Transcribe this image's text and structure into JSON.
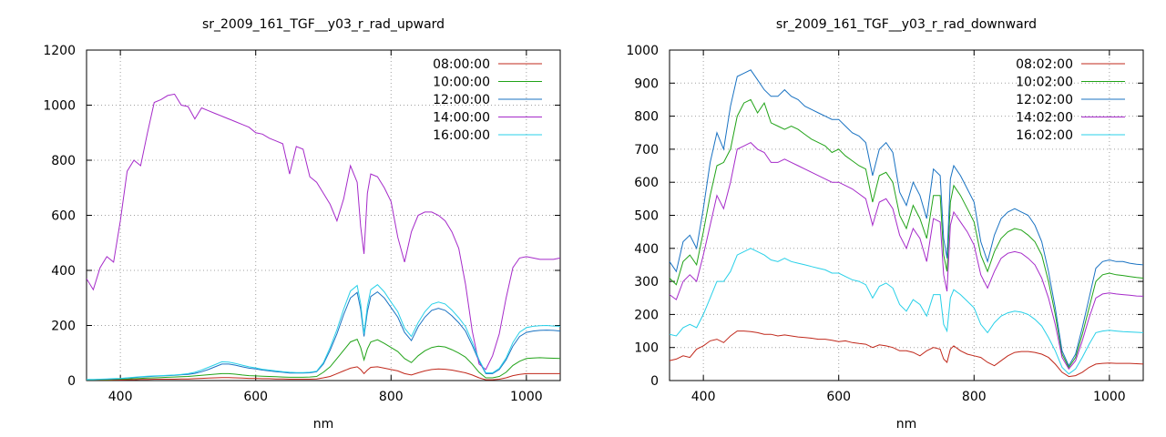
{
  "chart_data": [
    {
      "type": "line",
      "title": "sr_2009_161_TGF__y03_r_rad_upward",
      "xlabel": "nm",
      "ylabel": "",
      "xlim": [
        350,
        1050
      ],
      "ylim": [
        0,
        1200
      ],
      "x_ticks": [
        400,
        600,
        800,
        1000
      ],
      "y_ticks": [
        0,
        200,
        400,
        600,
        800,
        1000,
        1200
      ],
      "grid": true,
      "legend_position": "top-right",
      "x": [
        350,
        360,
        370,
        380,
        390,
        400,
        410,
        420,
        430,
        440,
        450,
        460,
        470,
        480,
        490,
        500,
        510,
        520,
        530,
        540,
        550,
        560,
        570,
        580,
        590,
        600,
        610,
        620,
        630,
        640,
        650,
        660,
        670,
        680,
        690,
        700,
        710,
        720,
        730,
        740,
        750,
        755,
        760,
        765,
        770,
        780,
        790,
        800,
        810,
        820,
        830,
        840,
        850,
        860,
        870,
        880,
        890,
        900,
        910,
        920,
        930,
        940,
        950,
        960,
        970,
        980,
        990,
        1000,
        1010,
        1020,
        1030,
        1040,
        1050
      ],
      "series": [
        {
          "name": "08:00:00",
          "color": "#c0281b",
          "values": [
            1,
            1,
            1,
            1,
            2,
            2,
            3,
            3,
            4,
            4,
            5,
            5,
            5,
            5,
            6,
            6,
            7,
            8,
            9,
            10,
            11,
            11,
            10,
            9,
            8,
            8,
            7,
            7,
            6,
            6,
            5,
            5,
            5,
            5,
            6,
            10,
            15,
            25,
            35,
            45,
            50,
            40,
            25,
            38,
            48,
            50,
            45,
            40,
            35,
            25,
            20,
            28,
            35,
            40,
            42,
            41,
            38,
            33,
            28,
            20,
            10,
            3,
            3,
            5,
            10,
            18,
            22,
            25,
            25,
            25,
            25,
            25,
            25
          ]
        },
        {
          "name": "10:00:00",
          "color": "#21a318",
          "values": [
            2,
            2,
            3,
            3,
            4,
            5,
            6,
            7,
            8,
            9,
            10,
            11,
            12,
            13,
            14,
            15,
            17,
            19,
            21,
            23,
            25,
            25,
            23,
            20,
            18,
            17,
            16,
            15,
            14,
            13,
            12,
            12,
            12,
            13,
            15,
            30,
            50,
            80,
            110,
            140,
            150,
            120,
            75,
            115,
            140,
            148,
            135,
            120,
            105,
            80,
            65,
            90,
            108,
            120,
            125,
            122,
            112,
            100,
            85,
            60,
            30,
            10,
            10,
            15,
            30,
            55,
            70,
            80,
            82,
            83,
            82,
            81,
            80
          ]
        },
        {
          "name": "12:00:00",
          "color": "#1972c2",
          "values": [
            3,
            3,
            4,
            5,
            6,
            7,
            9,
            11,
            13,
            14,
            16,
            17,
            18,
            19,
            21,
            22,
            26,
            32,
            40,
            50,
            60,
            60,
            56,
            50,
            45,
            42,
            38,
            35,
            32,
            30,
            27,
            27,
            27,
            28,
            32,
            60,
            110,
            170,
            240,
            300,
            320,
            260,
            160,
            250,
            305,
            322,
            300,
            265,
            230,
            175,
            145,
            195,
            230,
            255,
            262,
            255,
            235,
            210,
            180,
            128,
            70,
            25,
            25,
            40,
            75,
            125,
            160,
            175,
            180,
            182,
            183,
            182,
            180
          ]
        },
        {
          "name": "14:00:00",
          "color": "#a52ac9",
          "values": [
            370,
            330,
            410,
            450,
            430,
            580,
            760,
            800,
            780,
            900,
            1010,
            1020,
            1035,
            1040,
            1000,
            995,
            950,
            990,
            980,
            970,
            960,
            950,
            940,
            930,
            920,
            900,
            895,
            880,
            870,
            860,
            750,
            850,
            840,
            740,
            720,
            680,
            640,
            580,
            660,
            780,
            720,
            560,
            460,
            680,
            750,
            740,
            700,
            650,
            520,
            430,
            540,
            600,
            612,
            612,
            600,
            580,
            540,
            480,
            350,
            180,
            60,
            40,
            90,
            170,
            300,
            410,
            445,
            450,
            445,
            440,
            440,
            440,
            445
          ]
        },
        {
          "name": "16:00:00",
          "color": "#28d0e8",
          "values": [
            4,
            4,
            5,
            6,
            7,
            8,
            10,
            12,
            14,
            16,
            17,
            18,
            19,
            20,
            22,
            25,
            30,
            38,
            48,
            58,
            68,
            67,
            62,
            56,
            50,
            46,
            41,
            38,
            35,
            32,
            30,
            29,
            29,
            30,
            34,
            65,
            120,
            185,
            260,
            325,
            345,
            280,
            170,
            270,
            330,
            348,
            322,
            285,
            250,
            190,
            160,
            210,
            250,
            277,
            285,
            278,
            256,
            228,
            196,
            140,
            76,
            28,
            28,
            44,
            82,
            138,
            176,
            192,
            197,
            199,
            200,
            198,
            197
          ]
        }
      ]
    },
    {
      "type": "line",
      "title": "sr_2009_161_TGF__y03_r_rad_downward",
      "xlabel": "nm",
      "ylabel": "",
      "xlim": [
        350,
        1050
      ],
      "ylim": [
        0,
        1000
      ],
      "x_ticks": [
        400,
        600,
        800,
        1000
      ],
      "y_ticks": [
        0,
        100,
        200,
        300,
        400,
        500,
        600,
        700,
        800,
        900,
        1000
      ],
      "grid": true,
      "legend_position": "top-right",
      "x": [
        350,
        360,
        370,
        380,
        390,
        400,
        410,
        420,
        430,
        440,
        450,
        460,
        470,
        480,
        490,
        500,
        510,
        520,
        530,
        540,
        550,
        560,
        570,
        580,
        590,
        600,
        610,
        620,
        630,
        640,
        650,
        660,
        670,
        680,
        690,
        700,
        710,
        720,
        730,
        740,
        750,
        755,
        760,
        765,
        770,
        780,
        790,
        800,
        810,
        820,
        830,
        840,
        850,
        860,
        870,
        880,
        890,
        900,
        910,
        920,
        930,
        940,
        950,
        960,
        970,
        980,
        990,
        1000,
        1010,
        1020,
        1030,
        1040,
        1050
      ],
      "series": [
        {
          "name": "08:02:00",
          "color": "#c0281b",
          "values": [
            60,
            65,
            75,
            70,
            95,
            105,
            120,
            125,
            115,
            135,
            150,
            150,
            148,
            145,
            140,
            140,
            135,
            138,
            135,
            132,
            130,
            128,
            125,
            125,
            122,
            118,
            120,
            115,
            112,
            110,
            100,
            108,
            105,
            100,
            90,
            90,
            85,
            75,
            90,
            100,
            95,
            65,
            55,
            95,
            105,
            90,
            80,
            75,
            70,
            55,
            45,
            60,
            75,
            85,
            88,
            88,
            85,
            80,
            70,
            50,
            25,
            12,
            15,
            25,
            40,
            50,
            52,
            53,
            52,
            52,
            52,
            51,
            50
          ]
        },
        {
          "name": "10:02:00",
          "color": "#21a318",
          "values": [
            310,
            290,
            360,
            380,
            350,
            450,
            560,
            650,
            660,
            700,
            800,
            840,
            850,
            810,
            840,
            780,
            770,
            760,
            770,
            760,
            745,
            730,
            720,
            710,
            690,
            700,
            680,
            665,
            650,
            640,
            540,
            620,
            630,
            600,
            500,
            460,
            530,
            490,
            430,
            560,
            560,
            380,
            330,
            540,
            590,
            560,
            520,
            480,
            380,
            330,
            390,
            430,
            450,
            460,
            455,
            440,
            420,
            380,
            300,
            200,
            80,
            40,
            70,
            140,
            220,
            300,
            320,
            325,
            320,
            318,
            315,
            312,
            310
          ]
        },
        {
          "name": "12:02:00",
          "color": "#1972c2",
          "values": [
            360,
            330,
            420,
            440,
            400,
            520,
            660,
            750,
            700,
            830,
            920,
            930,
            940,
            910,
            880,
            860,
            860,
            880,
            860,
            850,
            830,
            820,
            810,
            800,
            790,
            790,
            770,
            750,
            740,
            720,
            620,
            700,
            720,
            690,
            570,
            530,
            600,
            560,
            490,
            640,
            620,
            430,
            370,
            610,
            650,
            620,
            580,
            540,
            420,
            360,
            440,
            490,
            510,
            520,
            510,
            500,
            470,
            420,
            330,
            220,
            90,
            45,
            80,
            160,
            250,
            340,
            360,
            365,
            360,
            360,
            355,
            352,
            350
          ]
        },
        {
          "name": "14:02:00",
          "color": "#a52ac9",
          "values": [
            260,
            245,
            300,
            320,
            300,
            380,
            470,
            560,
            520,
            600,
            700,
            710,
            720,
            700,
            690,
            660,
            660,
            670,
            660,
            650,
            640,
            630,
            620,
            610,
            600,
            600,
            590,
            580,
            565,
            550,
            470,
            540,
            550,
            520,
            440,
            400,
            460,
            430,
            360,
            490,
            480,
            320,
            270,
            470,
            510,
            480,
            450,
            410,
            320,
            280,
            330,
            370,
            385,
            390,
            385,
            370,
            350,
            310,
            250,
            170,
            70,
            35,
            60,
            120,
            190,
            250,
            262,
            265,
            262,
            260,
            258,
            256,
            255
          ]
        },
        {
          "name": "16:02:00",
          "color": "#28d0e8",
          "values": [
            140,
            135,
            160,
            170,
            160,
            200,
            250,
            300,
            300,
            330,
            380,
            390,
            400,
            390,
            380,
            365,
            360,
            370,
            360,
            355,
            350,
            345,
            340,
            335,
            325,
            325,
            315,
            305,
            300,
            290,
            250,
            285,
            295,
            280,
            230,
            210,
            245,
            230,
            195,
            260,
            260,
            170,
            150,
            250,
            275,
            260,
            240,
            220,
            170,
            145,
            175,
            195,
            205,
            210,
            207,
            200,
            185,
            165,
            130,
            90,
            40,
            20,
            35,
            70,
            110,
            145,
            150,
            152,
            150,
            148,
            147,
            146,
            145
          ]
        }
      ]
    }
  ]
}
